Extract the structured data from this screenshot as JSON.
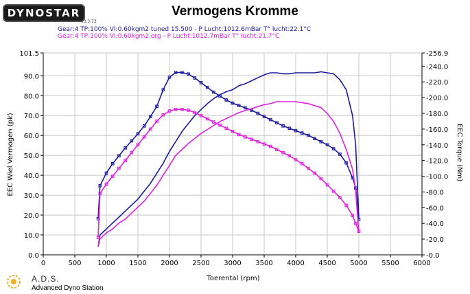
{
  "header": {
    "logo": "DYNOSTAR",
    "version": "v3.3.73",
    "title": "Vermogens Kromme",
    "legend": [
      {
        "text": "Gear:4  TP:100%  VI:0.60kgm2  tuned  15.500  -  P Lucht:1012.6mBar  T° lucht:22.1°C",
        "color": "#1a1aa0"
      },
      {
        "text": "Gear:4  TP:100%  VI:0.60kgm2   org  -  P Lucht:1012.7mBar  T° lucht:21.7°C",
        "color": "#e020e0"
      }
    ]
  },
  "footer": {
    "brand": "A.D.S.",
    "subtitle": "Advanced Dyno Station"
  },
  "colors": {
    "tuned": "#1a1aa0",
    "org": "#e020e0",
    "grid": "#c8c8c8"
  },
  "chart_data": {
    "type": "line",
    "title": "Vermogens Kromme",
    "xlabel": "Toerental (rpm)",
    "ylabel": "EEC Wiel Vermogen (pk)",
    "y2label": "EEC Torque (Nm)",
    "xlim": [
      0,
      6000
    ],
    "ylim": [
      0,
      101.5
    ],
    "y2lim": [
      0,
      256.9
    ],
    "grid": true,
    "x_ticks": [
      0,
      500,
      1000,
      1500,
      2000,
      2500,
      3000,
      3500,
      4000,
      4500,
      5000,
      5500,
      6000
    ],
    "x_tick_labels": [
      "0",
      "500",
      "1000",
      "1500",
      "2000",
      "2500",
      "3000",
      "3500",
      "4000",
      "4500",
      "5000",
      "5500",
      "6000"
    ],
    "y_ticks": [
      0,
      10,
      20,
      30,
      40,
      50,
      60,
      70,
      80,
      90,
      101.5
    ],
    "y_tick_labels": [
      "0.0",
      "10.0",
      "20.0",
      "30.0",
      "40.0",
      "50.0",
      "60.0",
      "70.0",
      "80.0",
      "90.0",
      "101.5"
    ],
    "y2_ticks": [
      0,
      20,
      40,
      60,
      80,
      100,
      120,
      140,
      160,
      180,
      200,
      220,
      240,
      256.9
    ],
    "y2_tick_labels": [
      "0.0",
      "20.0",
      "40.0",
      "60.0",
      "80.0",
      "100.0",
      "120.0",
      "140.0",
      "160.0",
      "180.0",
      "200.0",
      "220.0",
      "240.0",
      "256.9"
    ],
    "series": [
      {
        "key": "tuned_power",
        "axis": "left",
        "color": "#1a1aa0",
        "markers": false,
        "x": [
          870,
          900,
          1000,
          1100,
          1200,
          1300,
          1400,
          1500,
          1600,
          1700,
          1800,
          1900,
          2000,
          2100,
          2200,
          2300,
          2400,
          2500,
          2600,
          2700,
          2800,
          2900,
          3000,
          3100,
          3200,
          3300,
          3400,
          3500,
          3600,
          3700,
          3800,
          3900,
          4000,
          4100,
          4200,
          4300,
          4400,
          4500,
          4600,
          4700,
          4800,
          4900,
          4950,
          5000
        ],
        "y": [
          4,
          10,
          13,
          16,
          19,
          22,
          25,
          28,
          32,
          36,
          41,
          46,
          52,
          57,
          62,
          66,
          70,
          73,
          76,
          78.5,
          80.5,
          82,
          83,
          85,
          86,
          87.5,
          89,
          90.5,
          91.5,
          91.5,
          91,
          91,
          91.5,
          91.5,
          91.5,
          91.5,
          92,
          91.5,
          91,
          88,
          83,
          70,
          55,
          18
        ]
      },
      {
        "key": "tuned_torque",
        "axis": "right",
        "color": "#1a1aa0",
        "markers": true,
        "x": [
          870,
          900,
          1000,
          1100,
          1200,
          1300,
          1400,
          1500,
          1600,
          1700,
          1800,
          1900,
          2000,
          2100,
          2200,
          2300,
          2400,
          2500,
          2600,
          2700,
          2800,
          2900,
          3000,
          3100,
          3200,
          3300,
          3400,
          3500,
          3600,
          3700,
          3800,
          3900,
          4000,
          4100,
          4200,
          4300,
          4400,
          4500,
          4600,
          4700,
          4800,
          4900,
          4950,
          5000
        ],
        "y": [
          46,
          88,
          104,
          116,
          126,
          136,
          145,
          154,
          164,
          176,
          189,
          210,
          226,
          232,
          232,
          230,
          225,
          219,
          213,
          207,
          202,
          197,
          193,
          190,
          187,
          184,
          180,
          176,
          172,
          168,
          164,
          161,
          158,
          155,
          152,
          148,
          144,
          140,
          135,
          128,
          117,
          98,
          85,
          45
        ]
      },
      {
        "key": "org_power",
        "axis": "left",
        "color": "#e020e0",
        "markers": false,
        "x": [
          870,
          900,
          1000,
          1100,
          1200,
          1300,
          1400,
          1500,
          1600,
          1700,
          1800,
          1900,
          2000,
          2100,
          2200,
          2300,
          2400,
          2500,
          2600,
          2700,
          2800,
          2900,
          3000,
          3100,
          3200,
          3300,
          3400,
          3500,
          3600,
          3700,
          3800,
          3900,
          4000,
          4100,
          4200,
          4300,
          4400,
          4500,
          4600,
          4700,
          4800,
          4900,
          4950,
          5000
        ],
        "y": [
          4,
          8,
          11,
          13,
          16,
          18,
          21,
          24,
          27,
          31,
          35,
          40,
          45,
          50,
          53,
          56,
          58.5,
          61,
          63,
          65,
          67,
          68.5,
          70,
          71.5,
          72.5,
          73.5,
          74.5,
          75.5,
          76,
          77,
          77,
          77,
          77,
          76.5,
          76,
          75,
          74,
          71,
          67,
          61,
          53,
          43,
          32,
          11
        ]
      },
      {
        "key": "org_torque",
        "axis": "right",
        "color": "#e020e0",
        "markers": true,
        "x": [
          870,
          900,
          1000,
          1100,
          1200,
          1300,
          1400,
          1500,
          1600,
          1700,
          1800,
          1900,
          2000,
          2100,
          2200,
          2300,
          2400,
          2500,
          2600,
          2700,
          2800,
          2900,
          3000,
          3100,
          3200,
          3300,
          3400,
          3500,
          3600,
          3700,
          3800,
          3900,
          4000,
          4100,
          4200,
          4300,
          4400,
          4500,
          4600,
          4700,
          4800,
          4900,
          4950,
          5000
        ],
        "y": [
          22,
          78,
          90,
          100,
          110,
          120,
          130,
          140,
          150,
          160,
          170,
          178,
          183,
          185,
          185,
          184,
          181,
          177,
          173,
          169,
          165,
          161,
          157,
          153,
          150,
          147,
          144,
          141,
          138,
          134,
          130,
          126,
          121,
          116,
          110,
          104,
          97,
          89,
          81,
          73,
          63,
          50,
          40,
          30
        ]
      }
    ]
  }
}
